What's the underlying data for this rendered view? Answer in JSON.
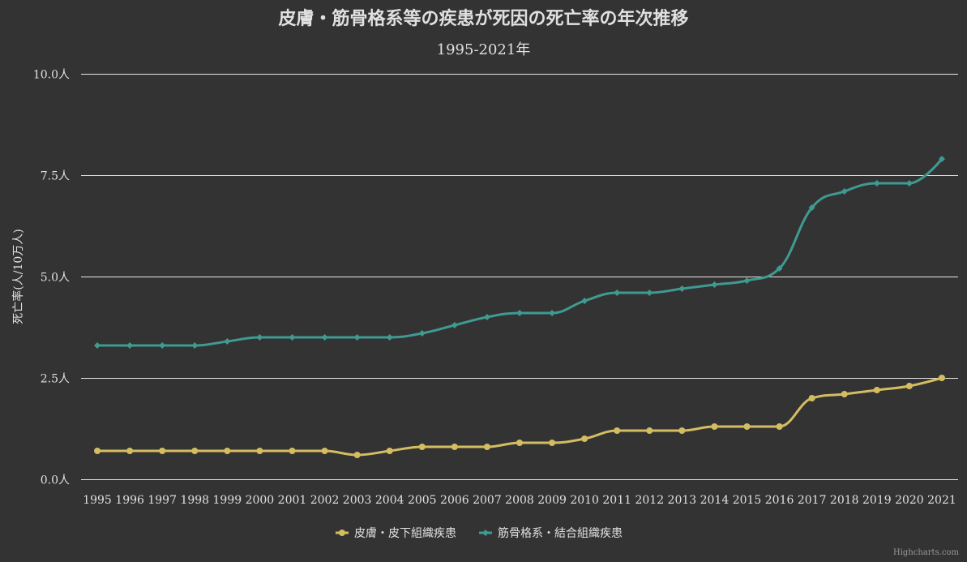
{
  "chart_data": {
    "type": "line",
    "title": "皮膚・筋骨格系等の疾患が死因の死亡率の年次推移",
    "subtitle": "1995-2021年",
    "xlabel": "",
    "ylabel": "死亡率(人/10万人)",
    "ylim": [
      0,
      10
    ],
    "yticks": [
      0,
      2.5,
      5,
      7.5,
      10
    ],
    "ytick_labels": [
      "0.0人",
      "2.5人",
      "5.0人",
      "7.5人",
      "10.0人"
    ],
    "categories": [
      "1995",
      "1996",
      "1997",
      "1998",
      "1999",
      "2000",
      "2001",
      "2002",
      "2003",
      "2004",
      "2005",
      "2006",
      "2007",
      "2008",
      "2009",
      "2010",
      "2011",
      "2012",
      "2013",
      "2014",
      "2015",
      "2016",
      "2017",
      "2018",
      "2019",
      "2020",
      "2021"
    ],
    "series": [
      {
        "name": "皮膚・皮下組織疾患",
        "color": "#d4bd61",
        "marker": "circle",
        "values": [
          0.7,
          0.7,
          0.7,
          0.7,
          0.7,
          0.7,
          0.7,
          0.7,
          0.6,
          0.7,
          0.8,
          0.8,
          0.8,
          0.9,
          0.9,
          1.0,
          1.2,
          1.2,
          1.2,
          1.3,
          1.3,
          1.3,
          2.0,
          2.1,
          2.2,
          2.3,
          2.5
        ]
      },
      {
        "name": "筋骨格系・結合組織疾患",
        "color": "#3f9a92",
        "marker": "diamond",
        "values": [
          3.3,
          3.3,
          3.3,
          3.3,
          3.4,
          3.5,
          3.5,
          3.5,
          3.5,
          3.5,
          3.6,
          3.8,
          4.0,
          4.1,
          4.1,
          4.4,
          4.6,
          4.6,
          4.7,
          4.8,
          4.9,
          5.2,
          6.7,
          7.1,
          7.3,
          7.3,
          7.9
        ]
      }
    ],
    "grid": true,
    "legend": "bottom-center",
    "line_shape": "spline"
  },
  "credits": "Highcharts.com",
  "colors": {
    "background": "#333333",
    "text": "#e0e0e0",
    "grid": "#e6e6e6",
    "credits": "#999999"
  }
}
